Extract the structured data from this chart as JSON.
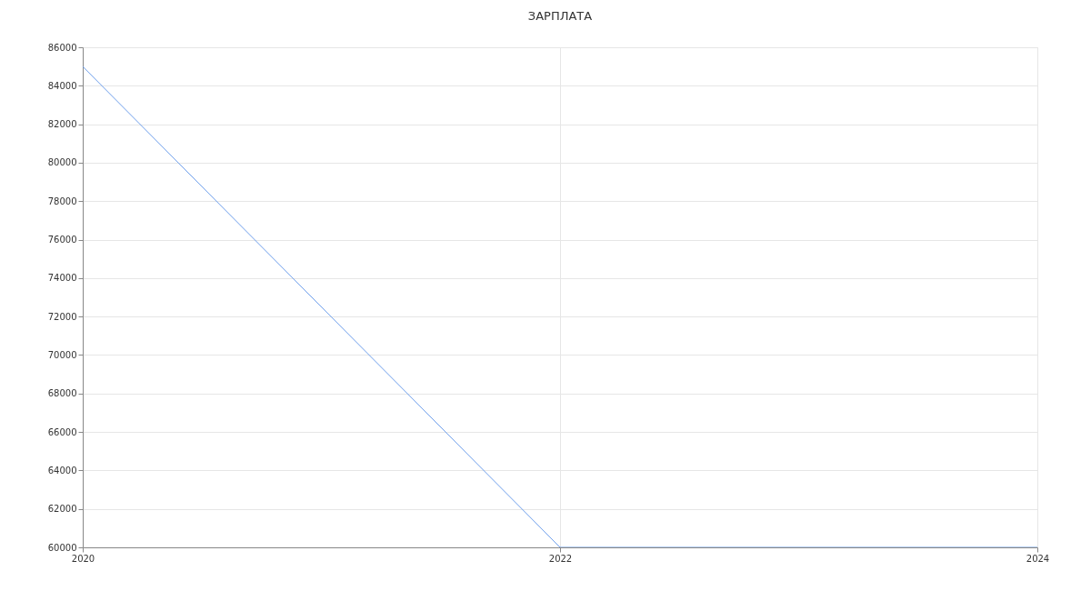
{
  "chart_data": {
    "type": "line",
    "title": "ЗАРПЛАТА",
    "x": [
      2020,
      2022,
      2024
    ],
    "series": [
      {
        "color": "#6d9eeb",
        "values": [
          85000,
          60000,
          60000
        ]
      }
    ],
    "xlim": [
      2020,
      2024
    ],
    "xticks": [
      2020,
      2022,
      2024
    ],
    "ylim": [
      60000,
      86000
    ],
    "yticks": [
      60000,
      62000,
      64000,
      66000,
      68000,
      70000,
      72000,
      74000,
      76000,
      78000,
      80000,
      82000,
      84000,
      86000
    ],
    "grid": true,
    "marker": "none",
    "line_style": "solid"
  }
}
